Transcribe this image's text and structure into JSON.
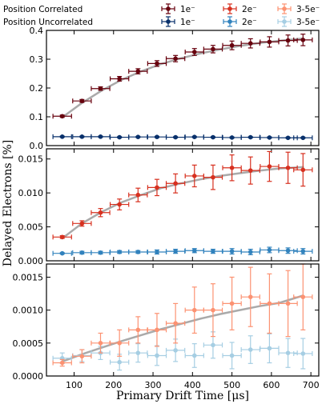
{
  "chart_data": {
    "type": "scatter",
    "xlabel": "Primary Drift Time [μs]",
    "ylabel": "Delayed Electrons [%]",
    "xlim": [
      30,
      720
    ],
    "xticks": [
      100,
      200,
      300,
      400,
      500,
      600,
      700
    ],
    "xtick_labels": [
      "100",
      "200",
      "300",
      "400",
      "500",
      "600",
      "700"
    ],
    "legend": {
      "placement": "top",
      "rows": [
        "Position Correlated",
        "Position Uncorrelated"
      ],
      "columns": [
        "1e⁻",
        "2e⁻",
        "3-5e⁻"
      ]
    },
    "panels": [
      {
        "ylim": [
          0,
          0.4
        ],
        "yticks": [
          0.0,
          0.1,
          0.2,
          0.3,
          0.4
        ],
        "ytick_labels": [
          "0.0",
          "0.1",
          "0.2",
          "0.3",
          "0.4"
        ],
        "series": [
          {
            "name": "1e⁻",
            "group": "Position Correlated",
            "color": "#67000d",
            "x": [
              70,
              120,
              167,
              215,
              262,
              310,
              357,
              405,
              452,
              500,
              547,
              595,
              642,
              680
            ],
            "y": [
              0.102,
              0.155,
              0.198,
              0.232,
              0.258,
              0.285,
              0.302,
              0.325,
              0.335,
              0.348,
              0.355,
              0.36,
              0.365,
              0.367
            ],
            "yerr": [
              0.004,
              0.005,
              0.006,
              0.008,
              0.009,
              0.01,
              0.011,
              0.012,
              0.013,
              0.015,
              0.016,
              0.018,
              0.019,
              0.02
            ]
          },
          {
            "name": "1e⁻",
            "group": "Position Uncorrelated",
            "color": "#08306b",
            "x": [
              70,
              120,
              167,
              215,
              262,
              310,
              357,
              405,
              452,
              500,
              547,
              595,
              642,
              680
            ],
            "y": [
              0.031,
              0.031,
              0.031,
              0.029,
              0.03,
              0.03,
              0.029,
              0.03,
              0.029,
              0.028,
              0.029,
              0.028,
              0.027,
              0.027
            ],
            "yerr": [
              0.002,
              0.002,
              0.002,
              0.002,
              0.002,
              0.002,
              0.002,
              0.002,
              0.002,
              0.002,
              0.002,
              0.002,
              0.002,
              0.002
            ]
          }
        ],
        "fit": {
          "color": "#aaaaaa",
          "x": [
            70,
            120,
            170,
            220,
            270,
            320,
            370,
            420,
            470,
            520,
            570,
            620,
            680
          ],
          "y": [
            0.098,
            0.148,
            0.191,
            0.228,
            0.258,
            0.283,
            0.303,
            0.32,
            0.334,
            0.346,
            0.356,
            0.364,
            0.372
          ]
        }
      },
      {
        "ylim": [
          0,
          0.0165
        ],
        "yticks": [
          0.0,
          0.005,
          0.01,
          0.015
        ],
        "ytick_labels": [
          "0.000",
          "0.005",
          "0.010",
          "0.015"
        ],
        "series": [
          {
            "name": "2e⁻",
            "group": "Position Correlated",
            "color": "#d7301f",
            "x": [
              70,
              120,
              167,
              215,
              262,
              310,
              357,
              405,
              452,
              500,
              547,
              595,
              642,
              680
            ],
            "y": [
              0.0035,
              0.0055,
              0.0071,
              0.0083,
              0.0097,
              0.0108,
              0.0114,
              0.0125,
              0.0123,
              0.0137,
              0.0133,
              0.0139,
              0.0137,
              0.0134
            ],
            "yerr": [
              0.0002,
              0.0004,
              0.0006,
              0.0008,
              0.001,
              0.0012,
              0.0014,
              0.0016,
              0.0018,
              0.0019,
              0.002,
              0.0022,
              0.0023,
              0.0024
            ]
          },
          {
            "name": "2e⁻",
            "group": "Position Uncorrelated",
            "color": "#3182bd",
            "x": [
              70,
              120,
              167,
              215,
              262,
              310,
              357,
              405,
              452,
              500,
              547,
              595,
              642,
              680
            ],
            "y": [
              0.0011,
              0.0012,
              0.0012,
              0.0013,
              0.0013,
              0.0013,
              0.0014,
              0.0015,
              0.0014,
              0.0014,
              0.0013,
              0.0016,
              0.0015,
              0.0014
            ],
            "yerr": [
              0.0001,
              0.0002,
              0.0002,
              0.0002,
              0.0002,
              0.0003,
              0.0003,
              0.0003,
              0.0003,
              0.0004,
              0.0004,
              0.0004,
              0.0004,
              0.0004
            ]
          }
        ],
        "fit": {
          "color": "#aaaaaa",
          "x": [
            70,
            120,
            170,
            220,
            270,
            320,
            370,
            420,
            470,
            520,
            570,
            620,
            680
          ],
          "y": [
            0.0033,
            0.0055,
            0.0072,
            0.0086,
            0.0097,
            0.0107,
            0.0114,
            0.012,
            0.0125,
            0.0129,
            0.0133,
            0.0136,
            0.0138
          ]
        }
      },
      {
        "ylim": [
          0,
          0.0017
        ],
        "yticks": [
          0.0,
          0.0005,
          0.001,
          0.0015
        ],
        "ytick_labels": [
          "0.0000",
          "0.0005",
          "0.0010",
          "0.0015"
        ],
        "series": [
          {
            "name": "3-5e⁻",
            "group": "Position Correlated",
            "color": "#fc9272",
            "x": [
              70,
              120,
              167,
              215,
              262,
              310,
              357,
              405,
              452,
              500,
              547,
              595,
              642,
              680
            ],
            "y": [
              0.0002,
              0.0003,
              0.0005,
              0.0005,
              0.0007,
              0.0007,
              0.0008,
              0.001,
              0.001,
              0.0011,
              0.0012,
              0.0011,
              0.0011,
              0.0012
            ],
            "yerr": [
              5e-05,
              0.0001,
              0.00015,
              0.0002,
              0.0002,
              0.00025,
              0.0003,
              0.00035,
              0.0004,
              0.0004,
              0.00045,
              0.00045,
              0.0005,
              0.0005
            ]
          },
          {
            "name": "3-5e⁻",
            "group": "Position Uncorrelated",
            "color": "#a6cee3",
            "x": [
              70,
              120,
              167,
              215,
              262,
              310,
              357,
              405,
              452,
              500,
              547,
              595,
              642,
              680
            ],
            "y": [
              0.00027,
              0.00031,
              0.00035,
              0.00021,
              0.00035,
              0.00031,
              0.00039,
              0.00031,
              0.00047,
              0.00031,
              0.0004,
              0.00042,
              0.00035,
              0.00034
            ],
            "yerr": [
              8e-05,
              9e-05,
              0.0001,
              0.00012,
              0.00014,
              0.00015,
              0.00017,
              0.00018,
              0.0002,
              0.0002,
              0.00021,
              0.00022,
              0.00022,
              0.00023
            ]
          }
        ],
        "fit": {
          "color": "#aaaaaa",
          "x": [
            70,
            120,
            170,
            220,
            270,
            320,
            370,
            420,
            470,
            520,
            570,
            620,
            680
          ],
          "y": [
            0.00022,
            0.00033,
            0.00043,
            0.00053,
            0.00062,
            0.00071,
            0.00079,
            0.00087,
            0.00094,
            0.001,
            0.00106,
            0.00111,
            0.00122
          ]
        }
      }
    ]
  }
}
